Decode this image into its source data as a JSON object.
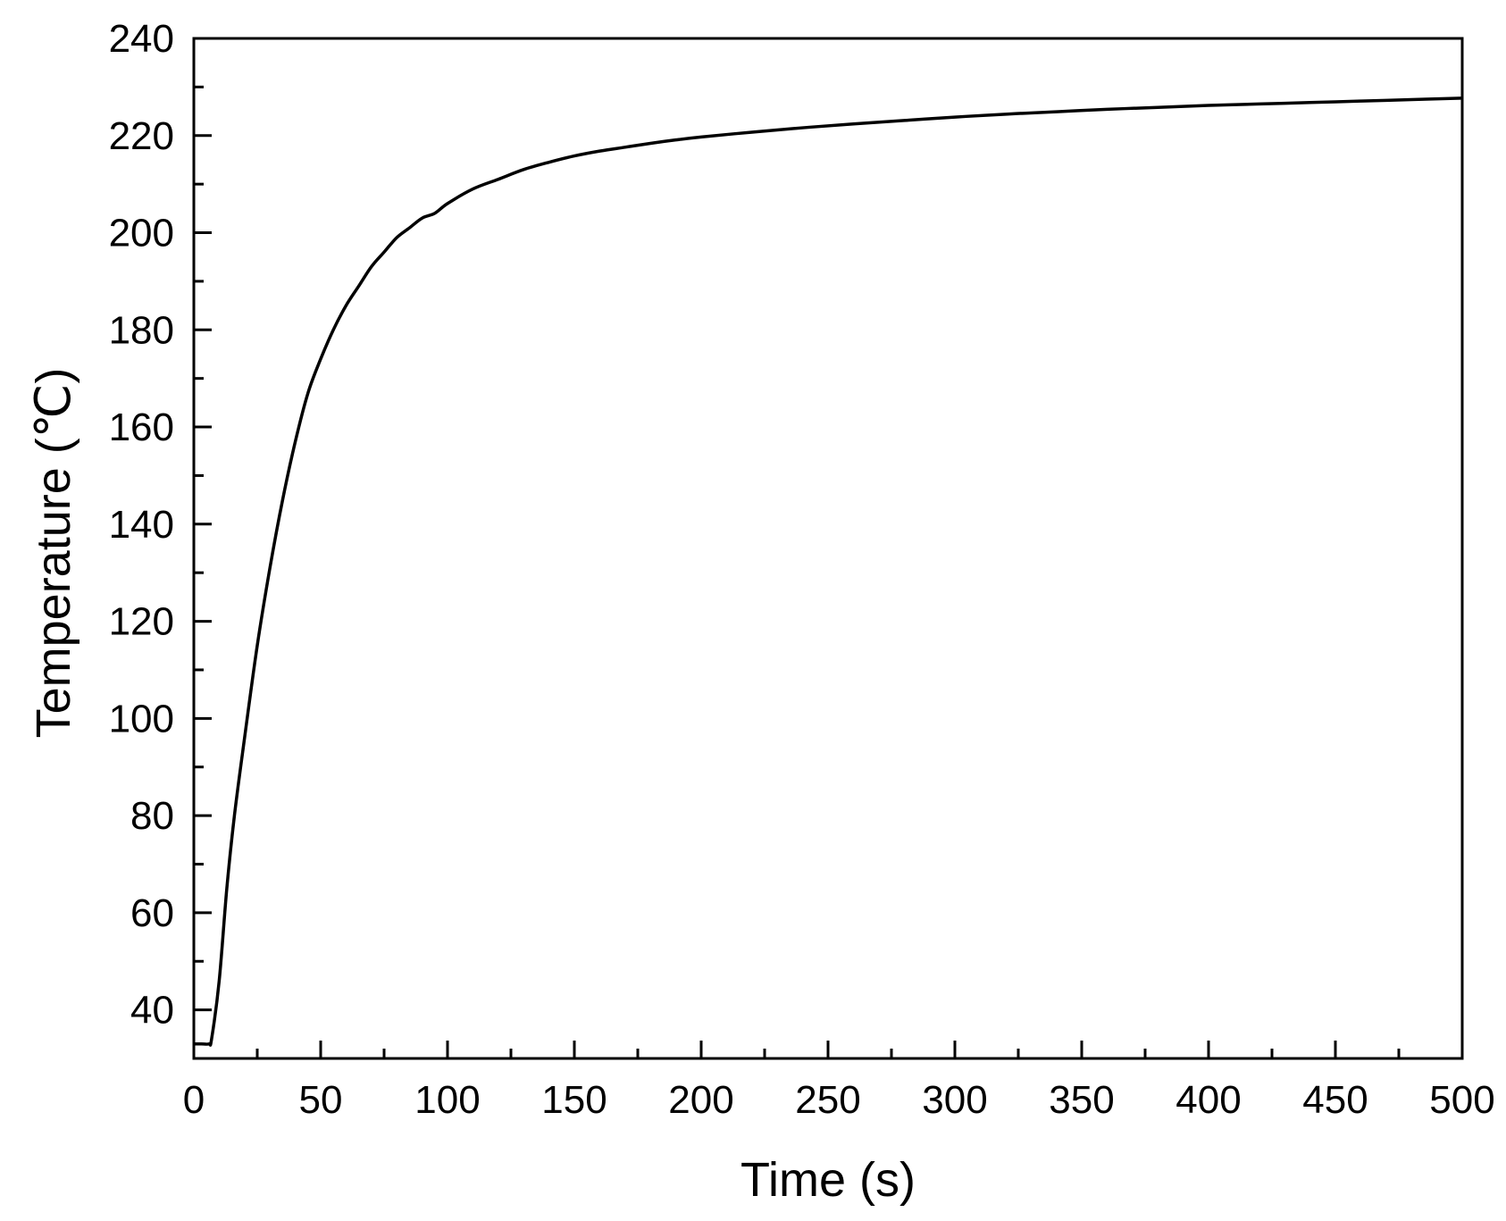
{
  "chart_data": {
    "type": "line",
    "title": "",
    "xlabel": "Time (s)",
    "ylabel": "Temperature (℃)",
    "xlim": [
      0,
      500
    ],
    "ylim": [
      30,
      240
    ],
    "x_ticks": [
      0,
      50,
      100,
      150,
      200,
      250,
      300,
      350,
      400,
      450,
      500
    ],
    "y_ticks": [
      40,
      60,
      80,
      100,
      120,
      140,
      160,
      180,
      200,
      220,
      240
    ],
    "grid": false,
    "legend": "none",
    "line_color": "#000000",
    "series": [
      {
        "x": [
          0,
          3,
          6,
          7,
          10,
          13,
          16,
          20,
          25,
          30,
          35,
          40,
          45,
          50,
          55,
          60,
          65,
          70,
          75,
          80,
          85,
          90,
          95,
          100,
          110,
          120,
          130,
          140,
          150,
          160,
          170,
          180,
          190,
          200,
          220,
          240,
          260,
          280,
          300,
          320,
          340,
          360,
          380,
          400,
          420,
          440,
          460,
          480,
          500
        ],
        "y": [
          33,
          33,
          33,
          34,
          46,
          65,
          80,
          96,
          115,
          131,
          145,
          157,
          167,
          174,
          180,
          185,
          189,
          193,
          196,
          199,
          201,
          203,
          204,
          206,
          209,
          211,
          213,
          214.5,
          215.8,
          216.8,
          217.6,
          218.4,
          219.1,
          219.7,
          220.7,
          221.6,
          222.4,
          223.1,
          223.8,
          224.4,
          224.9,
          225.4,
          225.8,
          226.2,
          226.5,
          226.8,
          227.1,
          227.4,
          227.7
        ]
      }
    ]
  }
}
